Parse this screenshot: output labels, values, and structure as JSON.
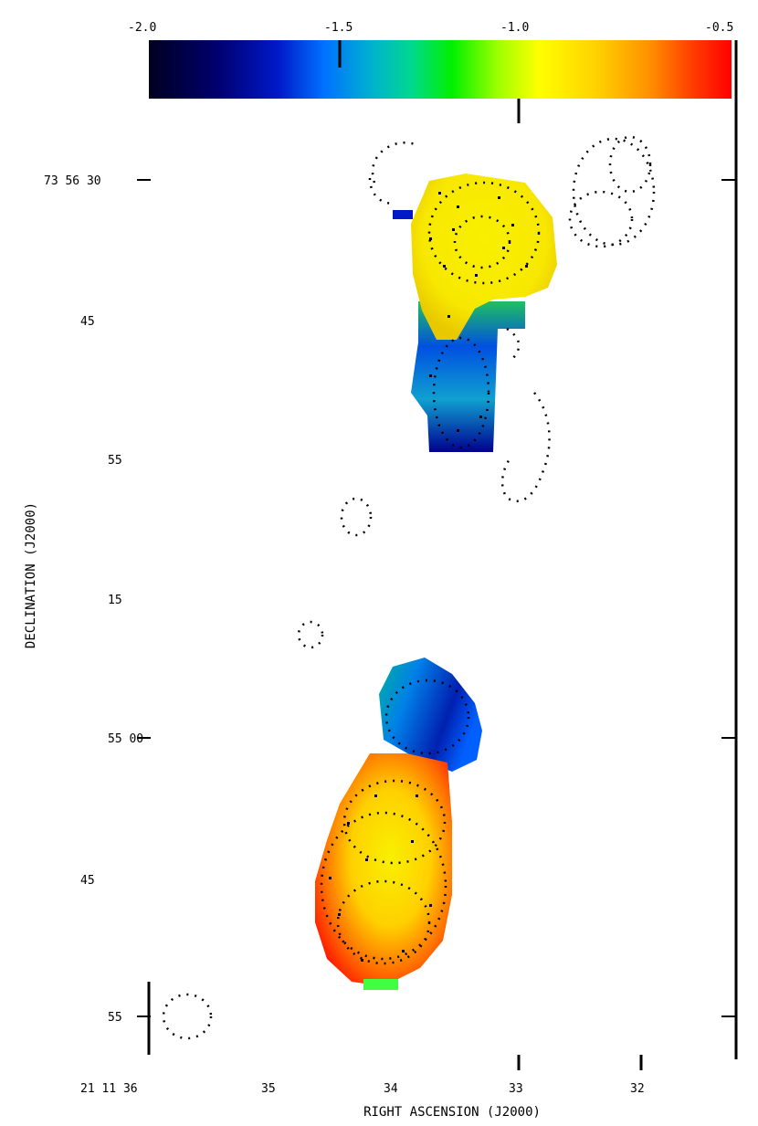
{
  "chart_data": {
    "type": "heatmap",
    "xlabel": "RIGHT ASCENSION (J2000)",
    "ylabel": "DECLINATION (J2000)",
    "colorbar": {
      "ticks": [
        "-2.0",
        "-1.5",
        "-1.0",
        "-0.5"
      ],
      "range": [
        -2.0,
        -0.5
      ],
      "colormap": [
        "#000020",
        "#000070",
        "#0018c8",
        "#0070ff",
        "#00b0d0",
        "#00d890",
        "#00f000",
        "#a0ff00",
        "#ffff00",
        "#ffd000",
        "#ff9000",
        "#ff4000",
        "#ff0000"
      ]
    },
    "x_tick_labels": [
      "21 11 36",
      "35",
      "34",
      "33",
      "32"
    ],
    "y_tick_labels": [
      "73 56 30",
      "45",
      "55",
      "15",
      "55 00",
      "45",
      "55"
    ],
    "components": [
      {
        "name": "north lobe head",
        "spectral_index_range": [
          -1.1,
          -0.85
        ],
        "color": "#f2ee10"
      },
      {
        "name": "north lobe tail",
        "spectral_index_range": [
          -2.0,
          -1.6
        ],
        "color": "#0030d0"
      },
      {
        "name": "south cap",
        "spectral_index_range": [
          -1.9,
          -1.6
        ],
        "color": "#0060e8"
      },
      {
        "name": "south lobe",
        "spectral_index_range": [
          -1.0,
          -0.55
        ],
        "color": "#ffb000"
      }
    ]
  }
}
